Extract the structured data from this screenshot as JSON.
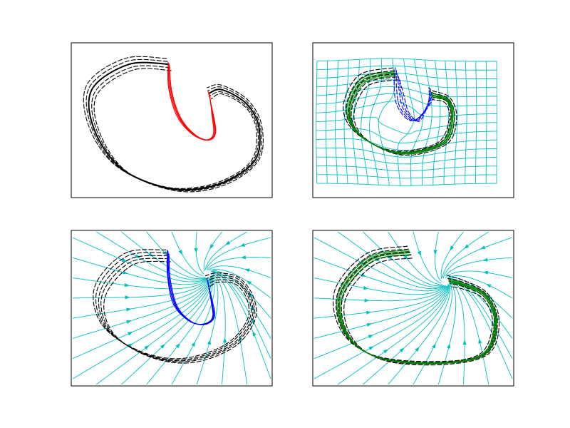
{
  "figure": {
    "title": ""
  },
  "colors": {
    "frame": "#000000",
    "demo": "#000000",
    "segment": "#ff0000",
    "alt_segment": "#0000ff",
    "reproduction": "#008000",
    "field": "#00bfbf"
  },
  "chart_data": [
    {
      "type": "line",
      "title": "",
      "xlabel": "",
      "ylabel": "",
      "grid": false,
      "legend": "none",
      "xlim": [
        0,
        280
      ],
      "ylim": [
        0,
        215
      ],
      "series": [
        {
          "style": "dashed",
          "color": "#000000",
          "x": [
            136,
            80,
            29,
            32,
            70,
            140,
            205,
            255,
            262,
            245,
            210,
            192
          ],
          "y": [
            185,
            185,
            150,
            95,
            40,
            12,
            18,
            50,
            95,
            130,
            150,
            145
          ]
        },
        {
          "style": "solid",
          "color": "#000000",
          "x": [
            136,
            80,
            29,
            32,
            70,
            140,
            205,
            255,
            262,
            245,
            210,
            192
          ],
          "y": [
            185,
            185,
            150,
            95,
            40,
            12,
            18,
            50,
            95,
            130,
            150,
            145
          ]
        },
        {
          "style": "solid",
          "color": "#ff0000",
          "x": [
            136,
            138,
            150,
            170,
            190,
            200,
            196,
            192
          ],
          "y": [
            185,
            150,
            112,
            88,
            80,
            90,
            120,
            145
          ]
        }
      ]
    },
    {
      "type": "line",
      "title": "",
      "xlabel": "",
      "ylabel": "",
      "grid": false,
      "legend": "none",
      "xlim": [
        0,
        280
      ],
      "ylim": [
        0,
        215
      ],
      "series": [
        {
          "style": "dashed",
          "color": "#000000",
          "x": [
            115,
            70,
            50,
            68,
            120,
            180,
            195,
            188,
            168,
            165
          ],
          "y": [
            172,
            162,
            120,
            85,
            62,
            75,
            110,
            135,
            142,
            145
          ]
        },
        {
          "style": "solid",
          "color": "#008000",
          "x": [
            115,
            70,
            50,
            68,
            120,
            180,
            195,
            188,
            168,
            165
          ],
          "y": [
            172,
            162,
            120,
            85,
            62,
            75,
            110,
            135,
            142,
            145
          ]
        },
        {
          "style": "dashed",
          "color": "#0000ff",
          "x": [
            118,
            120,
            125,
            138,
            148,
            160,
            165
          ],
          "y": [
            172,
            150,
            125,
            108,
            110,
            128,
            145
          ]
        }
      ]
    },
    {
      "type": "line",
      "title": "",
      "xlabel": "",
      "ylabel": "",
      "grid": false,
      "legend": "none",
      "xlim": [
        0,
        280
      ],
      "ylim": [
        0,
        215
      ],
      "series": [
        {
          "style": "dashed",
          "color": "#000000",
          "x": [
            135,
            80,
            40,
            50,
            100,
            160,
            220,
            250,
            250,
            232,
            205,
            190
          ],
          "y": [
            180,
            175,
            130,
            80,
            45,
            35,
            55,
            90,
            120,
            145,
            150,
            145
          ]
        },
        {
          "style": "solid",
          "color": "#0000ff",
          "x": [
            135,
            136,
            145,
            165,
            185,
            198,
            195,
            190
          ],
          "y": [
            185,
            150,
            112,
            90,
            85,
            95,
            120,
            145
          ]
        }
      ]
    },
    {
      "type": "line",
      "title": "",
      "xlabel": "",
      "ylabel": "",
      "grid": false,
      "legend": "none",
      "xlim": [
        0,
        280
      ],
      "ylim": [
        0,
        215
      ],
      "series": [
        {
          "style": "dashed",
          "color": "#000000",
          "x": [
            135,
            80,
            38,
            48,
            95,
            180,
            240,
            255,
            240,
            210,
            190
          ],
          "y": [
            185,
            175,
            125,
            70,
            38,
            32,
            45,
            90,
            125,
            140,
            145
          ]
        },
        {
          "style": "solid",
          "color": "#008000",
          "x": [
            135,
            80,
            38,
            48,
            95,
            180,
            240,
            255,
            240,
            210,
            190
          ],
          "y": [
            185,
            175,
            125,
            70,
            38,
            32,
            45,
            90,
            125,
            140,
            145
          ]
        }
      ]
    }
  ]
}
